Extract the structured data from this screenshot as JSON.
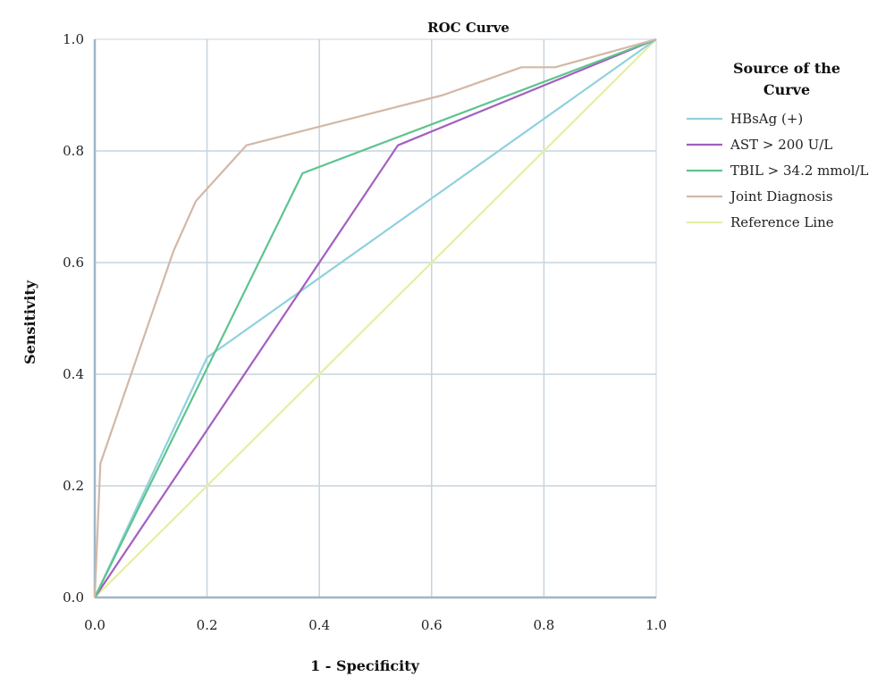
{
  "chart_data": {
    "type": "line",
    "title": "ROC Curve",
    "xlabel": "1 - Specificity",
    "ylabel": "Sensitivity",
    "xlim": [
      0,
      1
    ],
    "ylim": [
      0,
      1
    ],
    "x_ticks": [
      "0.0",
      "0.2",
      "0.4",
      "0.6",
      "0.8",
      "1.0"
    ],
    "y_ticks": [
      "0.0",
      "0.2",
      "0.4",
      "0.6",
      "0.8",
      "1.0"
    ],
    "grid": true,
    "legend": {
      "title_lines": [
        "Source of the",
        "Curve"
      ],
      "position": "right"
    },
    "series": [
      {
        "name": "HBsAg (+)",
        "color": "#8fd1de",
        "points": [
          [
            0,
            0
          ],
          [
            0.2,
            0.43
          ],
          [
            1,
            1
          ]
        ]
      },
      {
        "name": "AST > 200 U/L",
        "color": "#a35fc0",
        "points": [
          [
            0,
            0
          ],
          [
            0.54,
            0.81
          ],
          [
            1,
            1
          ]
        ]
      },
      {
        "name": "TBIL > 34.2 mmol/L",
        "color": "#5ec48d",
        "points": [
          [
            0,
            0
          ],
          [
            0.37,
            0.76
          ],
          [
            1,
            1
          ]
        ]
      },
      {
        "name": "Joint Diagnosis",
        "color": "#d2b8a8",
        "points": [
          [
            0,
            0
          ],
          [
            0.01,
            0.24
          ],
          [
            0.14,
            0.62
          ],
          [
            0.18,
            0.71
          ],
          [
            0.27,
            0.81
          ],
          [
            0.62,
            0.9
          ],
          [
            0.76,
            0.95
          ],
          [
            0.82,
            0.95
          ],
          [
            1,
            1
          ]
        ]
      },
      {
        "name": "Reference Line",
        "color": "#e6ef9e",
        "points": [
          [
            0,
            0
          ],
          [
            1,
            1
          ]
        ]
      }
    ]
  }
}
